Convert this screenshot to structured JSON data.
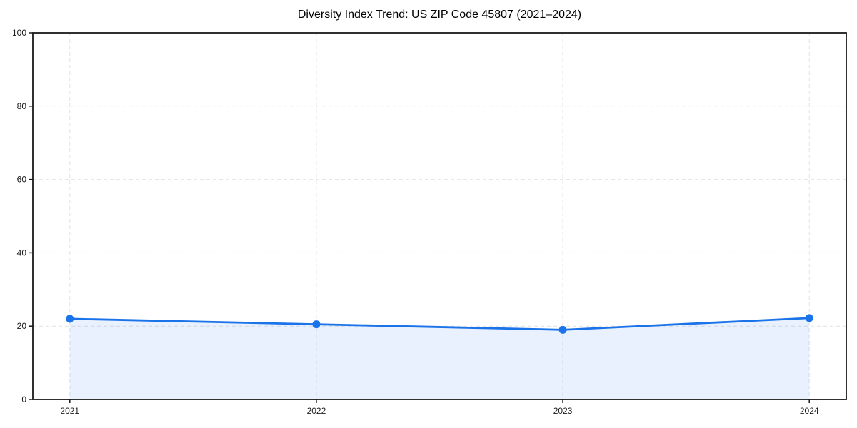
{
  "figure": {
    "background": "#ffffff"
  },
  "chart_data": {
    "type": "line",
    "title": "Diversity Index Trend: US ZIP Code 45807 (2021–2024)",
    "x": [
      2021,
      2022,
      2023,
      2024
    ],
    "series": [
      {
        "name": "Diversity Index",
        "values": [
          22.0,
          20.5,
          19.0,
          22.2
        ]
      }
    ],
    "xlabel": "",
    "ylabel": "",
    "ylim": [
      0,
      100
    ],
    "yticks": [
      0,
      20,
      40,
      60,
      80,
      100
    ],
    "ytick_labels": [
      "0",
      "20",
      "40",
      "60",
      "80",
      "100"
    ],
    "xticks": [
      2021,
      2022,
      2023,
      2024
    ],
    "xtick_labels": [
      "2021",
      "2022",
      "2023",
      "2024"
    ],
    "grid": true,
    "grid_style": "dashed",
    "legend_position": "none",
    "area_fill": true,
    "marker": "circle",
    "colors": {
      "line": "#1a73e8",
      "marker": "#1a73e8",
      "area": "rgba(26,115,232,0.10)",
      "grid": "#e2e2e2",
      "spine": "#1a1a1a",
      "tick": "#1a1a1a",
      "tick_label": "#1a1a1a",
      "title": "#000000",
      "background": "#ffffff"
    }
  }
}
